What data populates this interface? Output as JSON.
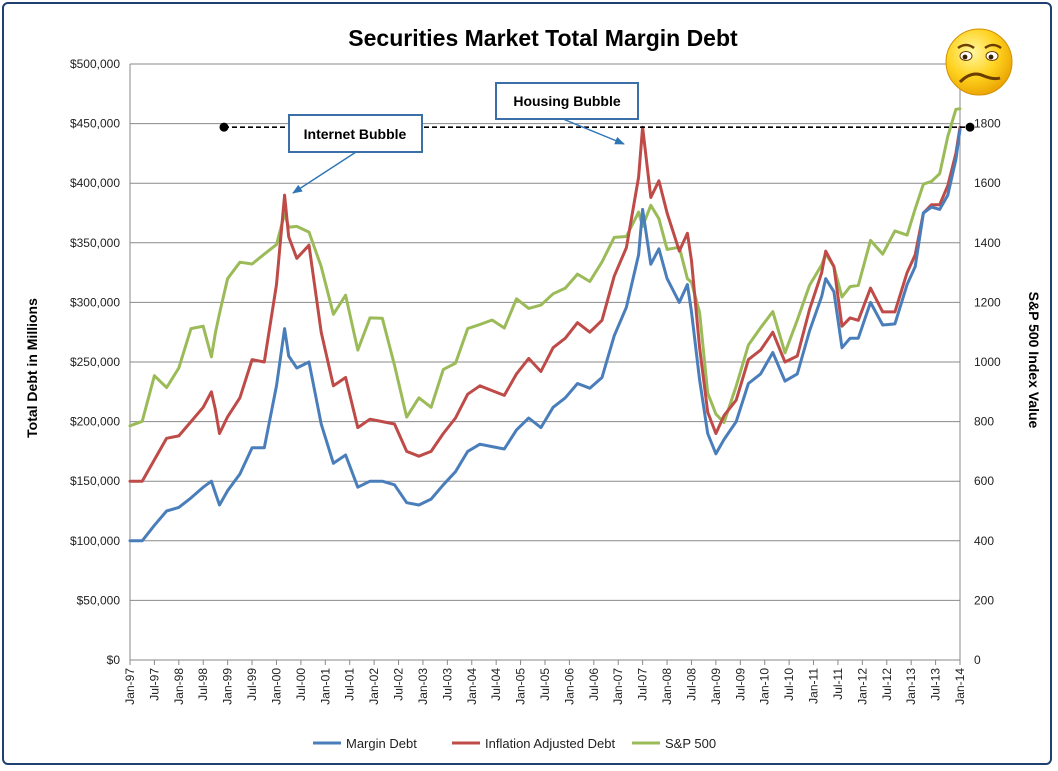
{
  "chart_data": {
    "type": "line",
    "title": "Securities Market Total Margin Debt",
    "ylabel": "Total Debt in Millions",
    "y2label": "S&P 500 Index Value",
    "ylim": [
      0,
      500000
    ],
    "y2lim": [
      0,
      2000
    ],
    "y_ticks": [
      "$0",
      "$50,000",
      "$100,000",
      "$150,000",
      "$200,000",
      "$250,000",
      "$300,000",
      "$350,000",
      "$400,000",
      "$450,000",
      "$500,000"
    ],
    "y2_ticks": [
      "0",
      "200",
      "400",
      "600",
      "800",
      "1000",
      "1200",
      "1400",
      "1600",
      "1800"
    ],
    "x_ticks": [
      "Jan-97",
      "Jul-97",
      "Jan-98",
      "Jul-98",
      "Jan-99",
      "Jul-99",
      "Jan-00",
      "Jul-00",
      "Jan-01",
      "Jul-01",
      "Jan-02",
      "Jul-02",
      "Jan-03",
      "Jul-03",
      "Jan-04",
      "Jul-04",
      "Jan-05",
      "Jul-05",
      "Jan-06",
      "Jul-06",
      "Jan-07",
      "Jul-07",
      "Jan-08",
      "Jul-08",
      "Jan-09",
      "Jul-09",
      "Jan-10",
      "Jul-10",
      "Jan-11",
      "Jul-11",
      "Jan-12",
      "Jul-12",
      "Jan-13",
      "Jul-13",
      "Jan-14"
    ],
    "x_range": [
      "1997-01",
      "2014-01"
    ],
    "grid": true,
    "legend_position": "bottom",
    "series": [
      {
        "name": "Margin Debt",
        "axis": "left",
        "color": "#4a7ebb",
        "points": [
          [
            "1997-01",
            100000
          ],
          [
            "1997-04",
            100000
          ],
          [
            "1997-07",
            113000
          ],
          [
            "1997-10",
            125000
          ],
          [
            "1998-01",
            128000
          ],
          [
            "1998-04",
            136000
          ],
          [
            "1998-07",
            145000
          ],
          [
            "1998-09",
            150000
          ],
          [
            "1998-10",
            140000
          ],
          [
            "1998-11",
            130000
          ],
          [
            "1999-01",
            142000
          ],
          [
            "1999-04",
            156000
          ],
          [
            "1999-07",
            178000
          ],
          [
            "1999-10",
            178000
          ],
          [
            "2000-01",
            230000
          ],
          [
            "2000-03",
            278000
          ],
          [
            "2000-04",
            255000
          ],
          [
            "2000-06",
            245000
          ],
          [
            "2000-09",
            250000
          ],
          [
            "2000-12",
            198000
          ],
          [
            "2001-03",
            165000
          ],
          [
            "2001-06",
            172000
          ],
          [
            "2001-09",
            145000
          ],
          [
            "2001-12",
            150000
          ],
          [
            "2002-03",
            150000
          ],
          [
            "2002-06",
            147000
          ],
          [
            "2002-09",
            132000
          ],
          [
            "2002-12",
            130000
          ],
          [
            "2003-03",
            135000
          ],
          [
            "2003-06",
            147000
          ],
          [
            "2003-09",
            158000
          ],
          [
            "2003-12",
            175000
          ],
          [
            "2004-03",
            181000
          ],
          [
            "2004-06",
            179000
          ],
          [
            "2004-09",
            177000
          ],
          [
            "2004-12",
            193000
          ],
          [
            "2005-03",
            203000
          ],
          [
            "2005-06",
            195000
          ],
          [
            "2005-09",
            212000
          ],
          [
            "2005-12",
            220000
          ],
          [
            "2006-03",
            232000
          ],
          [
            "2006-06",
            228000
          ],
          [
            "2006-09",
            237000
          ],
          [
            "2006-12",
            272000
          ],
          [
            "2007-03",
            296000
          ],
          [
            "2007-06",
            340000
          ],
          [
            "2007-07",
            378000
          ],
          [
            "2007-09",
            332000
          ],
          [
            "2007-11",
            345000
          ],
          [
            "2008-01",
            320000
          ],
          [
            "2008-04",
            300000
          ],
          [
            "2008-06",
            315000
          ],
          [
            "2008-07",
            292000
          ],
          [
            "2008-09",
            235000
          ],
          [
            "2008-11",
            190000
          ],
          [
            "2009-01",
            173000
          ],
          [
            "2009-03",
            185000
          ],
          [
            "2009-06",
            200000
          ],
          [
            "2009-09",
            232000
          ],
          [
            "2009-12",
            240000
          ],
          [
            "2010-03",
            258000
          ],
          [
            "2010-06",
            234000
          ],
          [
            "2010-09",
            240000
          ],
          [
            "2010-12",
            276000
          ],
          [
            "2011-03",
            305000
          ],
          [
            "2011-04",
            320000
          ],
          [
            "2011-06",
            309000
          ],
          [
            "2011-08",
            262000
          ],
          [
            "2011-10",
            270000
          ],
          [
            "2011-12",
            270000
          ],
          [
            "2012-03",
            300000
          ],
          [
            "2012-06",
            281000
          ],
          [
            "2012-09",
            282000
          ],
          [
            "2012-12",
            315000
          ],
          [
            "2013-02",
            330000
          ],
          [
            "2013-04",
            375000
          ],
          [
            "2013-06",
            380000
          ],
          [
            "2013-08",
            378000
          ],
          [
            "2013-10",
            390000
          ],
          [
            "2013-12",
            420000
          ],
          [
            "2014-01",
            445000
          ]
        ]
      },
      {
        "name": "Inflation Adjusted Debt",
        "axis": "left",
        "color": "#be4b48",
        "points": [
          [
            "1997-01",
            150000
          ],
          [
            "1997-04",
            150000
          ],
          [
            "1997-07",
            168000
          ],
          [
            "1997-10",
            186000
          ],
          [
            "1998-01",
            188000
          ],
          [
            "1998-04",
            200000
          ],
          [
            "1998-07",
            212000
          ],
          [
            "1998-09",
            225000
          ],
          [
            "1998-10",
            210000
          ],
          [
            "1998-11",
            190000
          ],
          [
            "1999-01",
            204000
          ],
          [
            "1999-04",
            220000
          ],
          [
            "1999-07",
            252000
          ],
          [
            "1999-10",
            250000
          ],
          [
            "2000-01",
            315000
          ],
          [
            "2000-03",
            390000
          ],
          [
            "2000-04",
            355000
          ],
          [
            "2000-06",
            337000
          ],
          [
            "2000-09",
            348000
          ],
          [
            "2000-12",
            275000
          ],
          [
            "2001-03",
            230000
          ],
          [
            "2001-06",
            237000
          ],
          [
            "2001-09",
            195000
          ],
          [
            "2001-12",
            202000
          ],
          [
            "2002-03",
            200000
          ],
          [
            "2002-06",
            198000
          ],
          [
            "2002-09",
            175000
          ],
          [
            "2002-12",
            171000
          ],
          [
            "2003-03",
            175000
          ],
          [
            "2003-06",
            190000
          ],
          [
            "2003-09",
            203000
          ],
          [
            "2003-12",
            223000
          ],
          [
            "2004-03",
            230000
          ],
          [
            "2004-06",
            226000
          ],
          [
            "2004-09",
            222000
          ],
          [
            "2004-12",
            240000
          ],
          [
            "2005-03",
            253000
          ],
          [
            "2005-06",
            242000
          ],
          [
            "2005-09",
            262000
          ],
          [
            "2005-12",
            270000
          ],
          [
            "2006-03",
            283000
          ],
          [
            "2006-06",
            275000
          ],
          [
            "2006-09",
            285000
          ],
          [
            "2006-12",
            322000
          ],
          [
            "2007-03",
            346000
          ],
          [
            "2007-06",
            405000
          ],
          [
            "2007-07",
            447000
          ],
          [
            "2007-09",
            388000
          ],
          [
            "2007-11",
            402000
          ],
          [
            "2008-01",
            375000
          ],
          [
            "2008-04",
            343000
          ],
          [
            "2008-06",
            358000
          ],
          [
            "2008-07",
            335000
          ],
          [
            "2008-09",
            262000
          ],
          [
            "2008-11",
            208000
          ],
          [
            "2009-01",
            190000
          ],
          [
            "2009-03",
            205000
          ],
          [
            "2009-06",
            218000
          ],
          [
            "2009-09",
            252000
          ],
          [
            "2009-12",
            260000
          ],
          [
            "2010-03",
            275000
          ],
          [
            "2010-06",
            250000
          ],
          [
            "2010-09",
            255000
          ],
          [
            "2010-12",
            294000
          ],
          [
            "2011-03",
            325000
          ],
          [
            "2011-04",
            343000
          ],
          [
            "2011-06",
            330000
          ],
          [
            "2011-08",
            280000
          ],
          [
            "2011-10",
            287000
          ],
          [
            "2011-12",
            285000
          ],
          [
            "2012-03",
            312000
          ],
          [
            "2012-06",
            292000
          ],
          [
            "2012-09",
            292000
          ],
          [
            "2012-12",
            325000
          ],
          [
            "2013-02",
            340000
          ],
          [
            "2013-04",
            375000
          ],
          [
            "2013-06",
            382000
          ],
          [
            "2013-08",
            382000
          ],
          [
            "2013-10",
            398000
          ],
          [
            "2013-12",
            425000
          ],
          [
            "2014-01",
            447000
          ]
        ]
      },
      {
        "name": "S&P 500",
        "axis": "right",
        "color": "#9bbb59",
        "points": [
          [
            "1997-01",
            786
          ],
          [
            "1997-04",
            801
          ],
          [
            "1997-07",
            954
          ],
          [
            "1997-10",
            914
          ],
          [
            "1998-01",
            980
          ],
          [
            "1998-04",
            1112
          ],
          [
            "1998-07",
            1120
          ],
          [
            "1998-09",
            1017
          ],
          [
            "1998-10",
            1098
          ],
          [
            "1998-11",
            1163
          ],
          [
            "1999-01",
            1280
          ],
          [
            "1999-04",
            1335
          ],
          [
            "1999-07",
            1329
          ],
          [
            "1999-10",
            1362
          ],
          [
            "2000-01",
            1394
          ],
          [
            "2000-03",
            1498
          ],
          [
            "2000-04",
            1452
          ],
          [
            "2000-06",
            1455
          ],
          [
            "2000-09",
            1436
          ],
          [
            "2000-12",
            1320
          ],
          [
            "2001-03",
            1160
          ],
          [
            "2001-06",
            1224
          ],
          [
            "2001-09",
            1040
          ],
          [
            "2001-12",
            1148
          ],
          [
            "2002-03",
            1147
          ],
          [
            "2002-06",
            989
          ],
          [
            "2002-09",
            815
          ],
          [
            "2002-12",
            880
          ],
          [
            "2003-03",
            848
          ],
          [
            "2003-06",
            975
          ],
          [
            "2003-09",
            996
          ],
          [
            "2003-12",
            1112
          ],
          [
            "2004-03",
            1126
          ],
          [
            "2004-06",
            1141
          ],
          [
            "2004-09",
            1114
          ],
          [
            "2004-12",
            1212
          ],
          [
            "2005-03",
            1180
          ],
          [
            "2005-06",
            1191
          ],
          [
            "2005-09",
            1229
          ],
          [
            "2005-12",
            1248
          ],
          [
            "2006-03",
            1295
          ],
          [
            "2006-06",
            1270
          ],
          [
            "2006-09",
            1336
          ],
          [
            "2006-12",
            1418
          ],
          [
            "2007-03",
            1421
          ],
          [
            "2007-06",
            1503
          ],
          [
            "2007-07",
            1455
          ],
          [
            "2007-09",
            1526
          ],
          [
            "2007-11",
            1481
          ],
          [
            "2008-01",
            1378
          ],
          [
            "2008-04",
            1385
          ],
          [
            "2008-06",
            1280
          ],
          [
            "2008-07",
            1267
          ],
          [
            "2008-09",
            1166
          ],
          [
            "2008-11",
            896
          ],
          [
            "2009-01",
            825
          ],
          [
            "2009-03",
            797
          ],
          [
            "2009-06",
            919
          ],
          [
            "2009-09",
            1057
          ],
          [
            "2009-12",
            1115
          ],
          [
            "2010-03",
            1169
          ],
          [
            "2010-06",
            1031
          ],
          [
            "2010-09",
            1141
          ],
          [
            "2010-12",
            1257
          ],
          [
            "2011-03",
            1326
          ],
          [
            "2011-04",
            1363
          ],
          [
            "2011-06",
            1320
          ],
          [
            "2011-08",
            1218
          ],
          [
            "2011-10",
            1253
          ],
          [
            "2011-12",
            1257
          ],
          [
            "2012-03",
            1408
          ],
          [
            "2012-06",
            1362
          ],
          [
            "2012-09",
            1440
          ],
          [
            "2012-12",
            1426
          ],
          [
            "2013-02",
            1514
          ],
          [
            "2013-04",
            1597
          ],
          [
            "2013-06",
            1606
          ],
          [
            "2013-08",
            1632
          ],
          [
            "2013-10",
            1757
          ],
          [
            "2013-12",
            1848
          ],
          [
            "2014-01",
            1850
          ]
        ]
      }
    ],
    "reference_line": {
      "axis": "left",
      "value": 447000,
      "style": "dashed",
      "color": "#000000"
    },
    "annotations": [
      {
        "text": "Internet Bubble",
        "target": [
          "2000-03",
          390000
        ]
      },
      {
        "text": "Housing Bubble",
        "target": [
          "2007-07",
          447000
        ]
      }
    ]
  }
}
